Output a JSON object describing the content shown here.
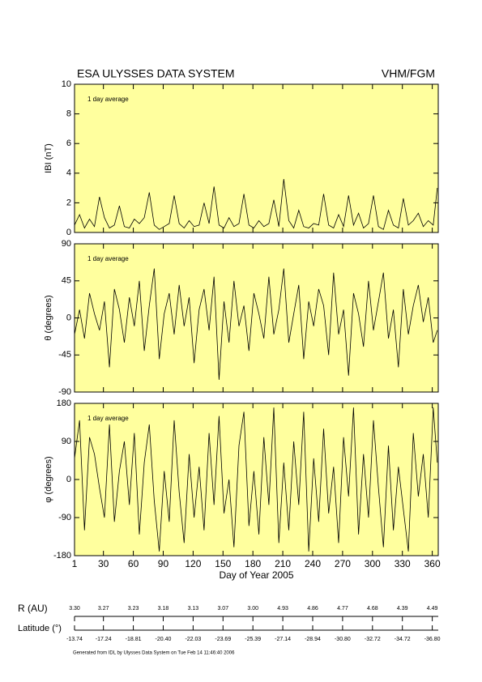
{
  "header": {
    "title": "ESA ULYSSES DATA SYSTEM",
    "instrument": "VHM/FGM"
  },
  "chart_data": [
    {
      "type": "line",
      "ylabel": "IBI (nT)",
      "annotation": "1 day average",
      "color": "#000000",
      "ylim": [
        0,
        10
      ],
      "yticks": [
        0,
        2,
        4,
        6,
        8,
        10
      ],
      "x": [
        1,
        6,
        11,
        16,
        21,
        26,
        31,
        36,
        41,
        46,
        51,
        56,
        61,
        66,
        71,
        76,
        81,
        86,
        91,
        96,
        101,
        106,
        111,
        116,
        121,
        126,
        131,
        136,
        141,
        146,
        151,
        156,
        161,
        166,
        171,
        176,
        181,
        186,
        191,
        196,
        201,
        206,
        211,
        216,
        221,
        226,
        231,
        236,
        241,
        246,
        251,
        256,
        261,
        266,
        271,
        276,
        281,
        286,
        291,
        296,
        301,
        306,
        311,
        316,
        321,
        326,
        331,
        336,
        341,
        346,
        351,
        356,
        361,
        365
      ],
      "values": [
        0.5,
        1.2,
        0.3,
        0.9,
        0.4,
        2.4,
        1.0,
        0.3,
        0.5,
        1.8,
        0.4,
        0.3,
        0.9,
        0.6,
        1.0,
        2.7,
        0.5,
        0.2,
        0.4,
        0.6,
        2.5,
        0.6,
        0.3,
        0.8,
        0.4,
        0.5,
        2.0,
        0.6,
        3.1,
        0.5,
        0.3,
        1.0,
        0.4,
        0.6,
        2.6,
        0.5,
        0.3,
        0.8,
        0.4,
        0.6,
        2.2,
        0.4,
        3.6,
        0.8,
        0.3,
        1.5,
        0.4,
        0.3,
        0.6,
        0.5,
        2.6,
        0.5,
        0.3,
        1.2,
        0.4,
        2.5,
        0.5,
        1.3,
        0.3,
        0.6,
        2.5,
        0.4,
        0.2,
        1.5,
        0.5,
        0.3,
        2.3,
        0.5,
        0.8,
        1.3,
        0.4,
        0.8,
        0.5,
        3.0
      ]
    },
    {
      "type": "line",
      "ylabel": "θ (degrees)",
      "annotation": "1 day average",
      "color": "#000000",
      "ylim": [
        -90,
        90
      ],
      "yticks": [
        -90,
        -45,
        0,
        45,
        90
      ],
      "x": [
        1,
        6,
        11,
        16,
        21,
        26,
        31,
        36,
        41,
        46,
        51,
        56,
        61,
        66,
        71,
        76,
        81,
        86,
        91,
        96,
        101,
        106,
        111,
        116,
        121,
        126,
        131,
        136,
        141,
        146,
        151,
        156,
        161,
        166,
        171,
        176,
        181,
        186,
        191,
        196,
        201,
        206,
        211,
        216,
        221,
        226,
        231,
        236,
        241,
        246,
        251,
        256,
        261,
        266,
        271,
        276,
        281,
        286,
        291,
        296,
        301,
        306,
        311,
        316,
        321,
        326,
        331,
        336,
        341,
        346,
        351,
        356,
        361,
        365
      ],
      "values": [
        -20,
        10,
        -25,
        30,
        5,
        -15,
        20,
        -60,
        35,
        10,
        -30,
        25,
        -10,
        45,
        -40,
        15,
        60,
        -50,
        5,
        30,
        -20,
        40,
        -10,
        25,
        -55,
        10,
        35,
        -15,
        50,
        -75,
        20,
        -30,
        45,
        -10,
        15,
        -40,
        30,
        5,
        -25,
        50,
        -20,
        10,
        60,
        -30,
        5,
        40,
        -50,
        20,
        -10,
        35,
        15,
        -45,
        55,
        -20,
        10,
        -70,
        30,
        5,
        -35,
        45,
        -15,
        20,
        55,
        -25,
        10,
        -60,
        35,
        -20,
        15,
        40,
        -5,
        25,
        -30,
        -15
      ]
    },
    {
      "type": "line",
      "ylabel": "φ (degrees)",
      "annotation": "1 day average",
      "color": "#000000",
      "ylim": [
        -180,
        180
      ],
      "yticks": [
        -180,
        -90,
        0,
        90,
        180
      ],
      "xlim": [
        1,
        366
      ],
      "xticks": [
        1,
        30,
        60,
        90,
        120,
        150,
        180,
        210,
        240,
        270,
        300,
        330,
        360
      ],
      "xlabel": "Day of Year 2005",
      "x": [
        1,
        6,
        11,
        16,
        21,
        26,
        31,
        36,
        41,
        46,
        51,
        56,
        61,
        66,
        71,
        76,
        81,
        86,
        91,
        96,
        101,
        106,
        111,
        116,
        121,
        126,
        131,
        136,
        141,
        146,
        151,
        156,
        161,
        166,
        171,
        176,
        181,
        186,
        191,
        196,
        201,
        206,
        211,
        216,
        221,
        226,
        231,
        236,
        241,
        246,
        251,
        256,
        261,
        266,
        271,
        276,
        281,
        286,
        291,
        296,
        301,
        306,
        311,
        316,
        321,
        326,
        331,
        336,
        341,
        346,
        351,
        356,
        361,
        365
      ],
      "values": [
        50,
        140,
        -120,
        100,
        60,
        -20,
        -90,
        130,
        -100,
        20,
        90,
        -60,
        110,
        -130,
        40,
        130,
        -50,
        -170,
        20,
        -100,
        140,
        -30,
        -150,
        60,
        -90,
        30,
        -120,
        110,
        -60,
        150,
        -80,
        0,
        -160,
        80,
        160,
        -110,
        20,
        -130,
        100,
        -60,
        170,
        -150,
        40,
        -120,
        90,
        -60,
        160,
        -170,
        50,
        -100,
        120,
        -80,
        30,
        -150,
        100,
        -40,
        170,
        -130,
        60,
        -90,
        140,
        -20,
        -160,
        80,
        -120,
        30,
        -70,
        -170,
        110,
        -40,
        60,
        -90,
        170,
        40
      ]
    }
  ],
  "r_au": {
    "label": "R (AU)",
    "values": [
      "3.30",
      "3.27",
      "3.23",
      "3.18",
      "3.13",
      "3.07",
      "3.00",
      "4.93",
      "4.86",
      "4.77",
      "4.68",
      "4.39",
      "4.49"
    ]
  },
  "latitude": {
    "label": "Latitude (°)",
    "values": [
      "-13.74",
      "-17.24",
      "-18.81",
      "-20.40",
      "-22.03",
      "-23.69",
      "-25.39",
      "-27.14",
      "-28.94",
      "-30.80",
      "-32.72",
      "-34.72",
      "-36.80"
    ]
  },
  "footer": "Generated from IDL by Ulysses Data System on Tue Feb 14 11:46:40 2006"
}
